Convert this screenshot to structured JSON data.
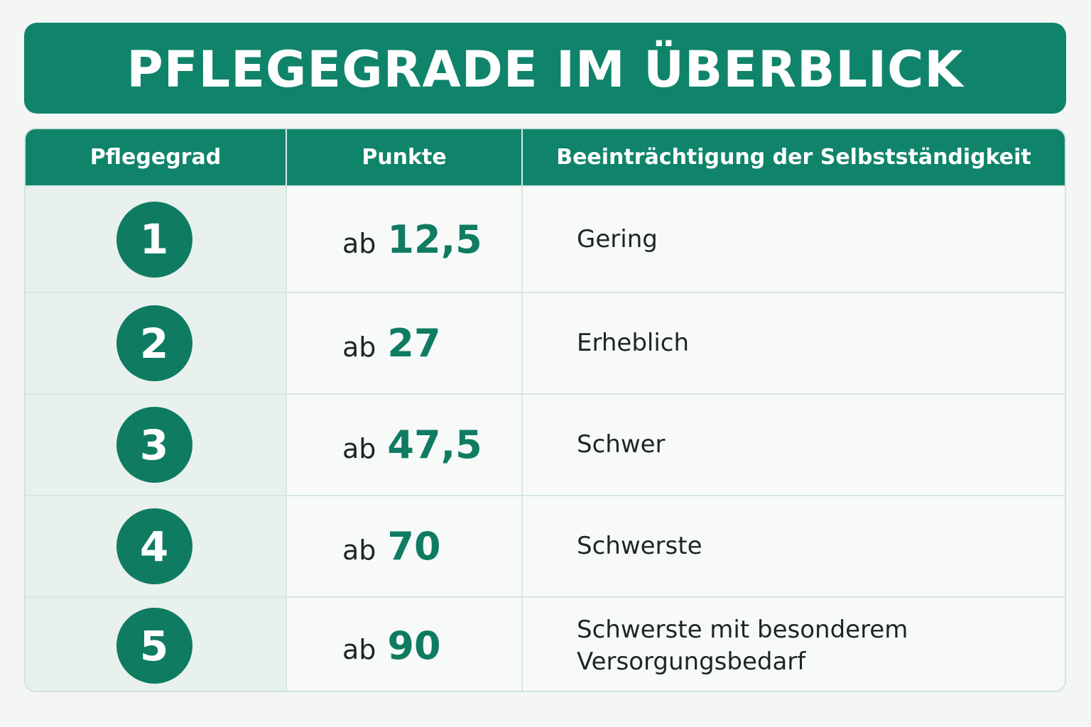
{
  "title": "PFLEGEGRADE IM ÜBERBLICK",
  "table": {
    "headers": [
      "Pflegegrad",
      "Punkte",
      "Beeinträchtigung der Selbstständigkeit"
    ],
    "rows": [
      {
        "grade": "1",
        "prefix": "ab",
        "points": "12,5",
        "description": [
          "Gering"
        ]
      },
      {
        "grade": "2",
        "prefix": "ab",
        "points": "27",
        "description": [
          "Erheblich"
        ]
      },
      {
        "grade": "3",
        "prefix": "ab",
        "points": "47,5",
        "description": [
          "Schwer"
        ]
      },
      {
        "grade": "4",
        "prefix": "ab",
        "points": "70",
        "description": [
          "Schwerste"
        ]
      },
      {
        "grade": "5",
        "prefix": "ab",
        "points": "90",
        "description": [
          "Schwerste mit besonderem",
          "Versorgungsbedarf"
        ]
      }
    ]
  },
  "colors": {
    "accent": "#0f846b",
    "badge": "#0f7c62",
    "text": "#1c2623"
  }
}
